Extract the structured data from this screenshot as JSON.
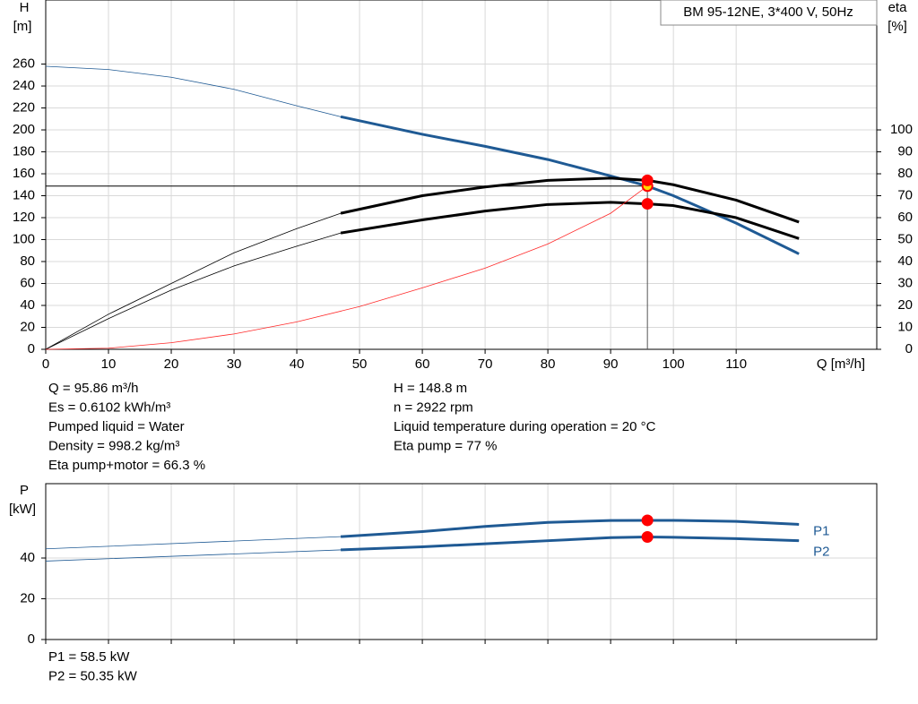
{
  "chart_data": [
    {
      "type": "line",
      "title": "BM 95-12NE, 3*400 V, 50Hz",
      "y_label": "H",
      "y_unit": "[m]",
      "y2_label": "eta",
      "y2_unit": "[%]",
      "x_label": "Q [m³/h]",
      "xlim": [
        0,
        132.4
      ],
      "xticks": [
        0,
        10,
        20,
        30,
        40,
        50,
        60,
        70,
        80,
        90,
        100,
        110
      ],
      "ylim": [
        0,
        318.4
      ],
      "yticks": [
        0,
        20,
        40,
        60,
        80,
        100,
        120,
        140,
        160,
        180,
        200,
        220,
        240,
        260
      ],
      "y2lim": [
        0,
        159.2
      ],
      "y2ticks": [
        0,
        10,
        20,
        30,
        40,
        50,
        60,
        70,
        80,
        90,
        100
      ],
      "grid": true,
      "bold_range": [
        47,
        120
      ],
      "series": [
        {
          "color": "#1f5a94",
          "bold": true,
          "x": [
            0,
            10,
            20,
            30,
            40,
            47,
            60,
            70,
            80,
            90,
            95.86,
            100,
            110,
            120
          ],
          "values": [
            258,
            255,
            248,
            237,
            222,
            212,
            196,
            185,
            173,
            158,
            148.8,
            140,
            115,
            87
          ]
        },
        {
          "color": "#000000",
          "bold": true,
          "axis": "y2",
          "x": [
            0,
            10,
            20,
            30,
            40,
            47,
            60,
            70,
            80,
            90,
            95.86,
            100,
            110,
            120
          ],
          "values": [
            0,
            16,
            30,
            44,
            55,
            62,
            70,
            74,
            77,
            78,
            77,
            75,
            68,
            58
          ]
        },
        {
          "color": "#000000",
          "bold": true,
          "axis": "y2",
          "x": [
            0,
            10,
            20,
            30,
            40,
            47,
            60,
            70,
            80,
            90,
            95.86,
            100,
            110,
            120
          ],
          "values": [
            0,
            14,
            27,
            38,
            47,
            53,
            59,
            63,
            66,
            67,
            66.3,
            65.5,
            60,
            50.5
          ]
        },
        {
          "color": "#ff2a2a",
          "bold": false,
          "x": [
            0,
            10,
            20,
            30,
            40,
            50,
            60,
            70,
            80,
            90,
            95.86
          ],
          "values": [
            0,
            1,
            6,
            14,
            25,
            39,
            56,
            74,
            96,
            124,
            148.8
          ]
        }
      ],
      "markers": [
        {
          "x": 95.86,
          "y": 148.8,
          "color": "#ffd700"
        },
        {
          "x": 95.86,
          "y": 77,
          "axis": "y2",
          "color": "#ff0000"
        },
        {
          "x": 95.86,
          "y": 66.3,
          "axis": "y2",
          "color": "#ff0000"
        }
      ]
    },
    {
      "type": "line",
      "y_label": "P",
      "y_unit": "[kW]",
      "xlim": [
        0,
        132.4
      ],
      "xticks": [
        0,
        10,
        20,
        30,
        40,
        50,
        60,
        70,
        80,
        90,
        100,
        110
      ],
      "ylim": [
        0,
        76.5
      ],
      "yticks": [
        0,
        20,
        40
      ],
      "grid": true,
      "bold_range": [
        47,
        120
      ],
      "series": [
        {
          "name": "P1",
          "color": "#1f5a94",
          "bold": true,
          "x": [
            0,
            47,
            60,
            70,
            80,
            90,
            95.86,
            100,
            110,
            120
          ],
          "values": [
            44.5,
            50.5,
            53,
            55.5,
            57.5,
            58.4,
            58.5,
            58.5,
            58,
            56.5
          ]
        },
        {
          "name": "P2",
          "color": "#1f5a94",
          "bold": true,
          "x": [
            0,
            47,
            60,
            70,
            80,
            90,
            95.86,
            100,
            110,
            120
          ],
          "values": [
            38.5,
            44,
            45.5,
            47,
            48.5,
            50,
            50.35,
            50.2,
            49.5,
            48.5
          ]
        }
      ],
      "markers": [
        {
          "x": 95.86,
          "y": 58.5,
          "color": "#ff0000"
        },
        {
          "x": 95.86,
          "y": 50.35,
          "color": "#ff0000"
        }
      ]
    }
  ],
  "info": {
    "left": [
      "Q = 95.86 m³/h",
      "Es = 0.6102 kWh/m³",
      "Pumped liquid = Water",
      "Density = 998.2 kg/m³",
      "Eta pump+motor = 66.3 %"
    ],
    "right": [
      "H = 148.8 m",
      "n = 2922 rpm",
      "Liquid temperature during operation = 20 °C",
      "Eta pump = 77 %"
    ]
  },
  "power_info": [
    "P1 = 58.5 kW",
    "P2 = 50.35 kW"
  ]
}
